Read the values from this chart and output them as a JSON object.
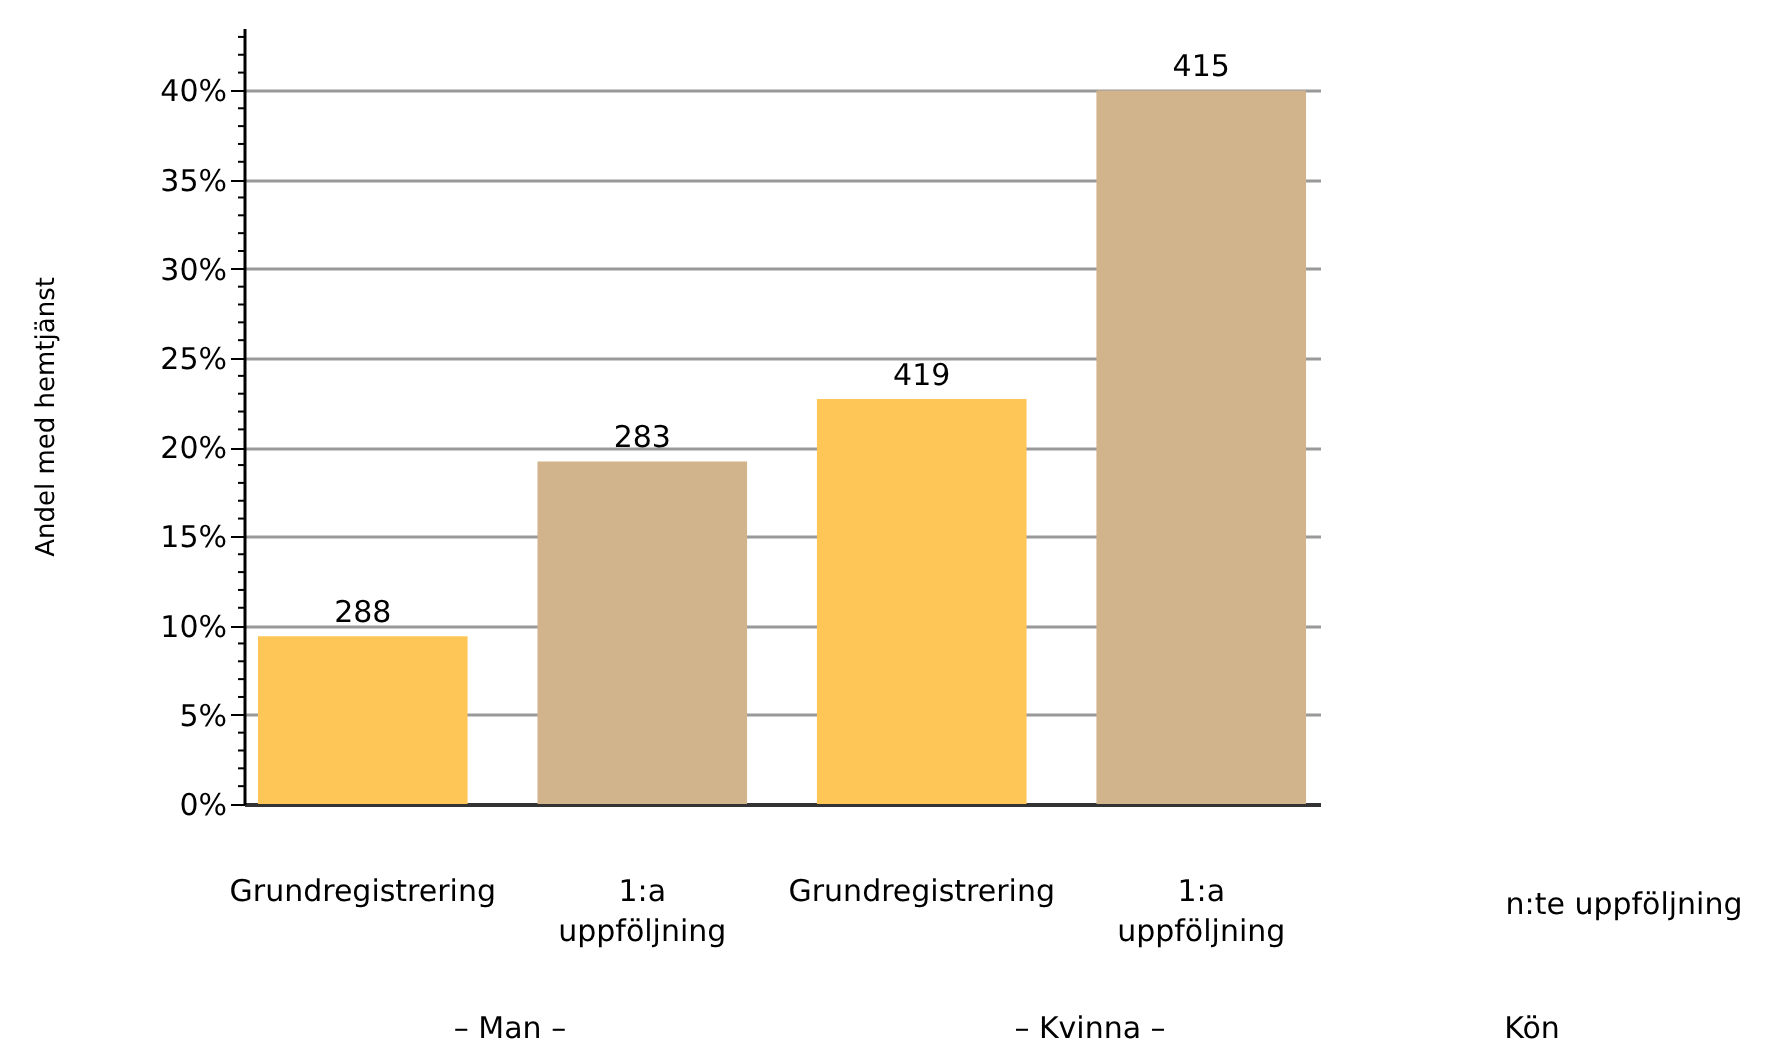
{
  "chart_data": {
    "type": "bar",
    "ylabel": "Andel med hemtjänst",
    "categories": [
      "Grundregistrering",
      "1:a uppföljning",
      "Grundregistrering",
      "1:a uppföljning"
    ],
    "values": [
      9.4,
      19.2,
      22.7,
      40
    ],
    "colors": [
      "#fec657",
      "#d2b48c",
      "#fec657",
      "#d2b48c"
    ],
    "ylim": [
      0,
      43.5
    ],
    "yticks": [
      {
        "value": 0,
        "label": "0%"
      },
      {
        "value": 1,
        "label": null
      },
      {
        "value": 2,
        "label": null
      },
      {
        "value": 3,
        "label": null
      },
      {
        "value": 4,
        "label": null
      },
      {
        "value": 5,
        "label": "5%"
      },
      {
        "value": 6,
        "label": null
      },
      {
        "value": 7,
        "label": null
      },
      {
        "value": 8,
        "label": null
      },
      {
        "value": 9,
        "label": null
      },
      {
        "value": 10,
        "label": "10%"
      },
      {
        "value": 11,
        "label": null
      },
      {
        "value": 12,
        "label": null
      },
      {
        "value": 13,
        "label": null
      },
      {
        "value": 14,
        "label": null
      },
      {
        "value": 15,
        "label": "15%"
      },
      {
        "value": 16,
        "label": null
      },
      {
        "value": 17,
        "label": null
      },
      {
        "value": 18,
        "label": null
      },
      {
        "value": 19,
        "label": null
      },
      {
        "value": 20,
        "label": "20%"
      },
      {
        "value": 21,
        "label": null
      },
      {
        "value": 22,
        "label": null
      },
      {
        "value": 23,
        "label": null
      },
      {
        "value": 24,
        "label": null
      },
      {
        "value": 25,
        "label": "25%"
      },
      {
        "value": 26,
        "label": null
      },
      {
        "value": 27,
        "label": null
      },
      {
        "value": 28,
        "label": null
      },
      {
        "value": 29,
        "label": null
      },
      {
        "value": 30,
        "label": "30%"
      },
      {
        "value": 31,
        "label": null
      },
      {
        "value": 32,
        "label": null
      },
      {
        "value": 33,
        "label": null
      },
      {
        "value": 34,
        "label": null
      },
      {
        "value": 35,
        "label": "35%"
      },
      {
        "value": 36,
        "label": null
      },
      {
        "value": 37,
        "label": null
      },
      {
        "value": 38,
        "label": null
      },
      {
        "value": 39,
        "label": null
      },
      {
        "value": 40,
        "label": "40%"
      },
      {
        "value": 41,
        "label": null
      },
      {
        "value": 42,
        "label": null
      },
      {
        "value": 43,
        "label": null
      }
    ],
    "grid": "y",
    "annotations": [
      {
        "text": "288",
        "y": 9.4
      },
      {
        "text": "283",
        "y": 19.2
      },
      {
        "text": "419",
        "y": 22.7
      },
      {
        "text": "415",
        "y": 40
      },
      "n:te uppföljning",
      "– Man –",
      "– Kvinna –",
      "Kön"
    ]
  }
}
